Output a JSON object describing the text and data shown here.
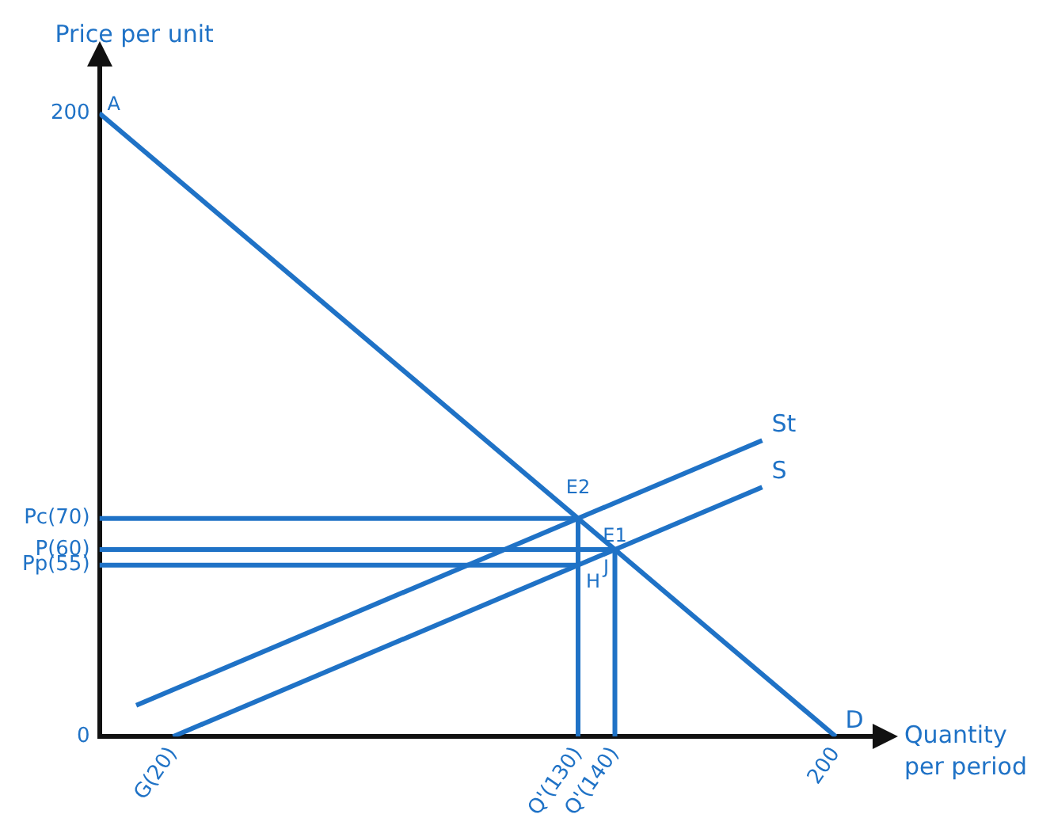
{
  "chart_data": {
    "type": "line",
    "xlabel": "Quantity per period",
    "ylabel": "Price per unit",
    "xlim": [
      0,
      210
    ],
    "ylim": [
      0,
      215
    ],
    "xticks": [
      {
        "value": 20,
        "label": "G(20)"
      },
      {
        "value": 130,
        "label": "Q'(130)"
      },
      {
        "value": 140,
        "label": "Q'(140)"
      },
      200
    ],
    "yticks": [
      0,
      {
        "value": 55,
        "label": "Pp(55)"
      },
      {
        "value": 60,
        "label": "P(60)"
      },
      {
        "value": 70,
        "label": "Pc(70)"
      },
      200
    ],
    "grid": false,
    "legend": false,
    "marker": "none",
    "line_style": "solid",
    "series": [
      {
        "name": "D",
        "color": "#1f72c6",
        "x": [
          0,
          200
        ],
        "values": [
          200,
          0
        ]
      },
      {
        "name": "S",
        "color": "#1f72c6",
        "x": [
          20,
          180
        ],
        "values": [
          0,
          80
        ]
      },
      {
        "name": "St",
        "color": "#1f72c6",
        "x": [
          10,
          180
        ],
        "values": [
          10,
          95
        ]
      },
      {
        "color": "#1f72c6",
        "x": [
          0,
          130
        ],
        "values": [
          70,
          70
        ]
      },
      {
        "color": "#1f72c6",
        "x": [
          0,
          140
        ],
        "values": [
          60,
          60
        ]
      },
      {
        "color": "#1f72c6",
        "x": [
          0,
          130
        ],
        "values": [
          55,
          55
        ]
      },
      {
        "color": "#1f72c6",
        "x": [
          130,
          130
        ],
        "values": [
          0,
          70
        ]
      },
      {
        "color": "#1f72c6",
        "x": [
          140,
          140
        ],
        "values": [
          0,
          60
        ]
      }
    ],
    "annotations": [
      {
        "text": "A",
        "x": 0,
        "y": 200
      },
      {
        "text": "E2",
        "x": 130,
        "y": 70
      },
      {
        "text": "J",
        "x": 130,
        "y": 65
      },
      {
        "text": "E1",
        "x": 140,
        "y": 60
      },
      {
        "text": "H",
        "x": 130,
        "y": 55
      }
    ]
  }
}
